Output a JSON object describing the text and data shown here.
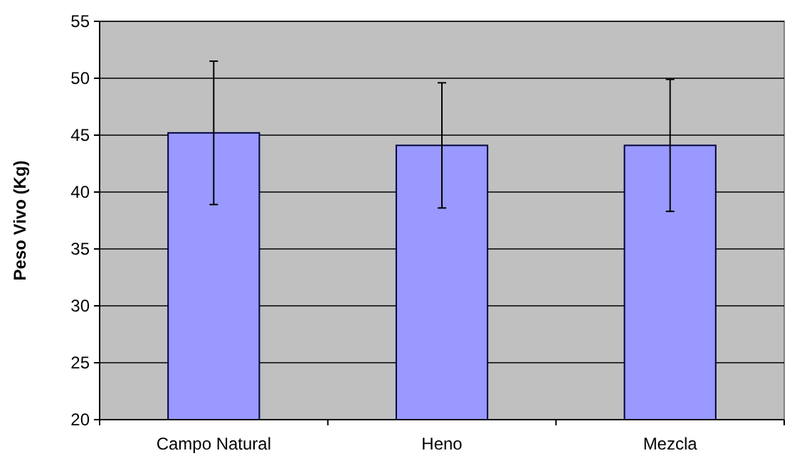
{
  "chart_data": {
    "type": "bar",
    "ylabel": "Peso Vivo (Kg)",
    "categories": [
      "Campo Natural",
      "Heno",
      "Mezcla"
    ],
    "values": [
      45.2,
      44.1,
      44.1
    ],
    "errors": [
      6.3,
      5.5,
      5.8
    ],
    "color": "#9999ff",
    "ylim": [
      20,
      55
    ],
    "yticks": [
      20,
      25,
      30,
      35,
      40,
      45,
      50,
      55
    ],
    "grid": "y"
  }
}
